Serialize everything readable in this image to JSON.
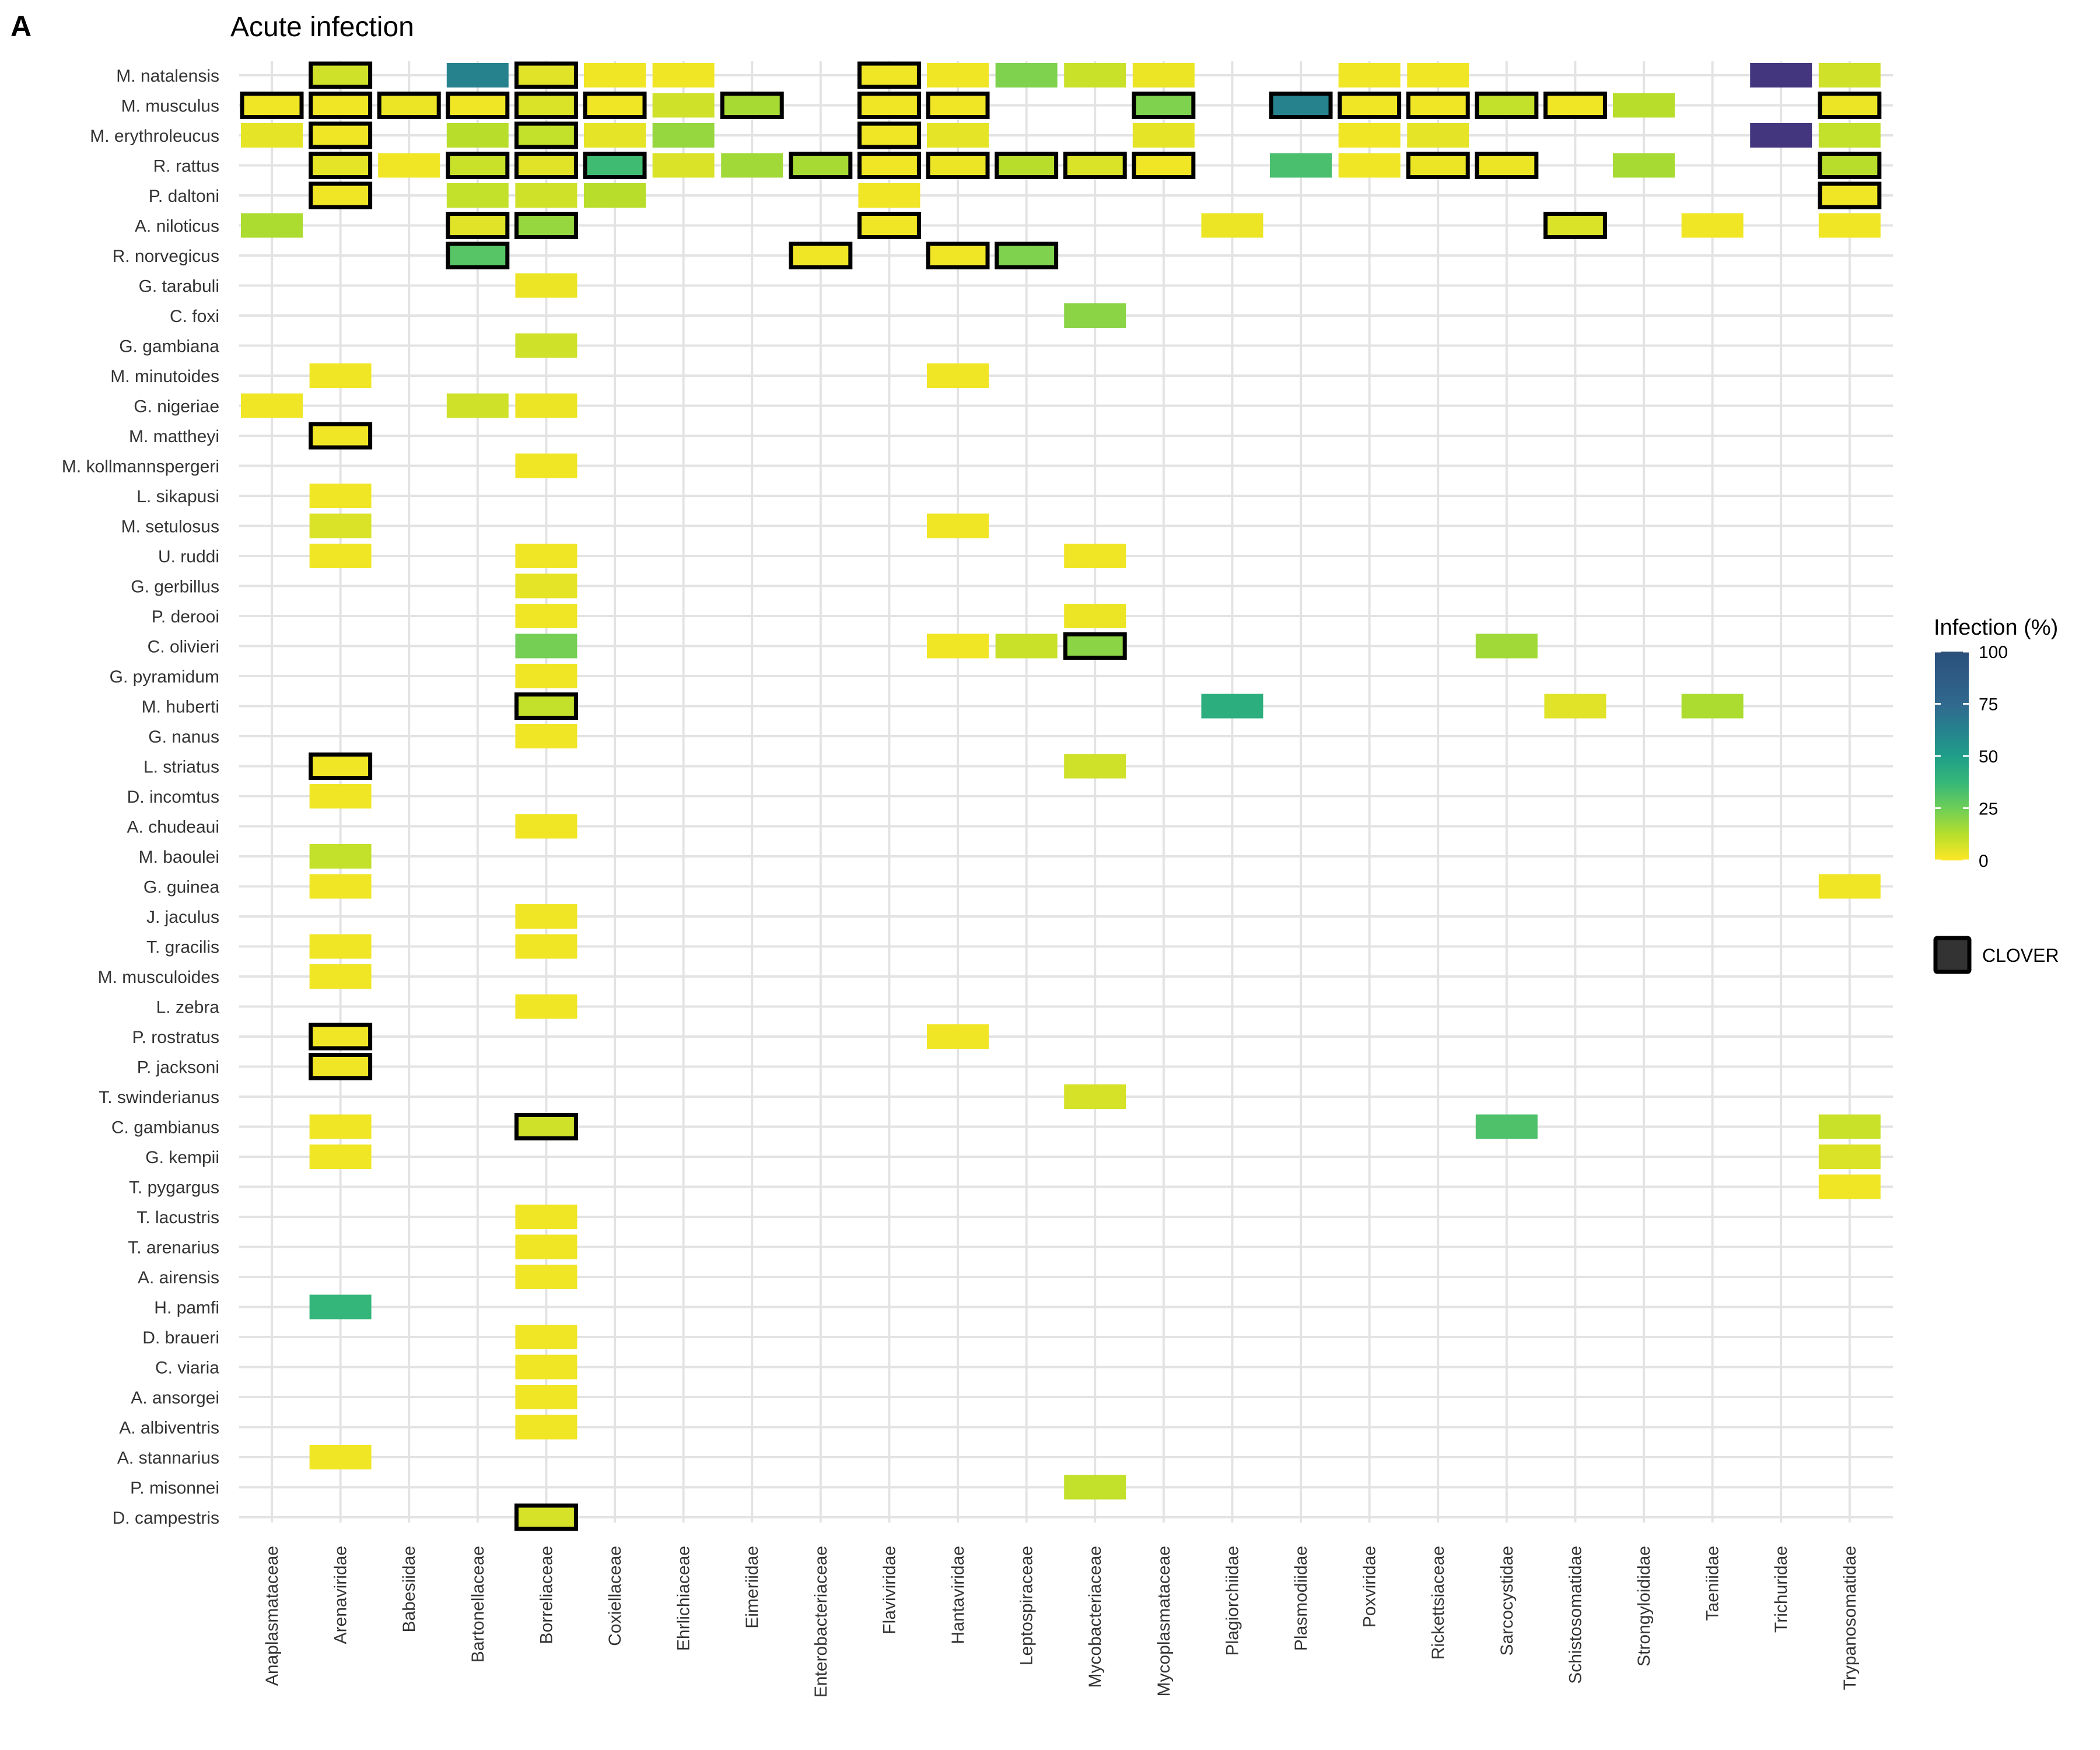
{
  "panel_label": "A",
  "chart_data": {
    "type": "heatmap",
    "title": "Acute infection",
    "xlabel": "",
    "ylabel": "",
    "grid": true,
    "legend_position": "right",
    "color_scale": {
      "title": "Infection (%)",
      "min": 0,
      "max": 100,
      "ticks": [
        0,
        25,
        50,
        75,
        100
      ],
      "palette": [
        "#fde725",
        "#b5de2b",
        "#6ece58",
        "#35b779",
        "#1f9e89",
        "#26828e",
        "#31688e",
        "#3e4989",
        "#482878"
      ]
    },
    "outline_legend": {
      "label": "CLOVER"
    },
    "x_categories": [
      "Anaplasmataceae",
      "Arenaviridae",
      "Babesiidae",
      "Bartonellaceae",
      "Borreliaceae",
      "Coxiellaceae",
      "Ehrlichiaceae",
      "Eimeriidae",
      "Enterobacteriaceae",
      "Flaviviridae",
      "Hantaviridae",
      "Leptospiraceae",
      "Mycobacteriaceae",
      "Mycoplasmataceae",
      "Plagiorchiidae",
      "Plasmodiidae",
      "Poxviridae",
      "Rickettsiaceae",
      "Sarcocystidae",
      "Schistosomatidae",
      "Strongyloididae",
      "Taeniidae",
      "Trichuridae",
      "Trypanosomatidae"
    ],
    "y_categories": [
      "M. natalensis",
      "M. musculus",
      "M. erythroleucus",
      "R. rattus",
      "P. daltoni",
      "A. niloticus",
      "R. norvegicus",
      "G. tarabuli",
      "C. foxi",
      "G. gambiana",
      "M. minutoides",
      "G. nigeriae",
      "M. mattheyi",
      "M. kollmannspergeri",
      "L. sikapusi",
      "M. setulosus",
      "U. ruddi",
      "G. gerbillus",
      "P. derooi",
      "C. olivieri",
      "G. pyramidum",
      "M. huberti",
      "G. nanus",
      "L. striatus",
      "D. incomtus",
      "A. chudeaui",
      "M. baoulei",
      "G. guinea",
      "J. jaculus",
      "T. gracilis",
      "M. musculoides",
      "L. zebra",
      "P. rostratus",
      "P. jacksoni",
      "T. swinderianus",
      "C. gambianus",
      "G. kempii",
      "T. pygargus",
      "T. lacustris",
      "T. arenarius",
      "A. airensis",
      "H. pamfi",
      "D. braueri",
      "C. viaria",
      "A. ansorgei",
      "A. albiventris",
      "A. stannarius",
      "P. misonnei",
      "D. campestris"
    ],
    "cells": [
      {
        "y": "M. natalensis",
        "x": "Arenaviridae",
        "value": 8,
        "clover": true
      },
      {
        "y": "M. natalensis",
        "x": "Bartonellaceae",
        "value": 62,
        "clover": false
      },
      {
        "y": "M. natalensis",
        "x": "Borreliaceae",
        "value": 5,
        "clover": true
      },
      {
        "y": "M. natalensis",
        "x": "Coxiellaceae",
        "value": 2,
        "clover": false
      },
      {
        "y": "M. natalensis",
        "x": "Ehrlichiaceae",
        "value": 2,
        "clover": false
      },
      {
        "y": "M. natalensis",
        "x": "Flaviviridae",
        "value": 2,
        "clover": true
      },
      {
        "y": "M. natalensis",
        "x": "Hantaviridae",
        "value": 2,
        "clover": false
      },
      {
        "y": "M. natalensis",
        "x": "Leptospiraceae",
        "value": 22,
        "clover": false
      },
      {
        "y": "M. natalensis",
        "x": "Mycobacteriaceae",
        "value": 9,
        "clover": false
      },
      {
        "y": "M. natalensis",
        "x": "Mycoplasmataceae",
        "value": 3,
        "clover": false
      },
      {
        "y": "M. natalensis",
        "x": "Poxviridae",
        "value": 2,
        "clover": false
      },
      {
        "y": "M. natalensis",
        "x": "Rickettsiaceae",
        "value": 2,
        "clover": false
      },
      {
        "y": "M. natalensis",
        "x": "Trichuridae",
        "value": 95,
        "clover": false
      },
      {
        "y": "M. natalensis",
        "x": "Trypanosomatidae",
        "value": 8,
        "clover": false
      },
      {
        "y": "M. musculus",
        "x": "Anaplasmataceae",
        "value": 2,
        "clover": true
      },
      {
        "y": "M. musculus",
        "x": "Arenaviridae",
        "value": 2,
        "clover": true
      },
      {
        "y": "M. musculus",
        "x": "Babesiidae",
        "value": 3,
        "clover": true
      },
      {
        "y": "M. musculus",
        "x": "Bartonellaceae",
        "value": 2,
        "clover": true
      },
      {
        "y": "M. musculus",
        "x": "Borreliaceae",
        "value": 6,
        "clover": true
      },
      {
        "y": "M. musculus",
        "x": "Coxiellaceae",
        "value": 2,
        "clover": true
      },
      {
        "y": "M. musculus",
        "x": "Ehrlichiaceae",
        "value": 8,
        "clover": false
      },
      {
        "y": "M. musculus",
        "x": "Eimeriidae",
        "value": 15,
        "clover": true
      },
      {
        "y": "M. musculus",
        "x": "Flaviviridae",
        "value": 2,
        "clover": true
      },
      {
        "y": "M. musculus",
        "x": "Hantaviridae",
        "value": 2,
        "clover": true
      },
      {
        "y": "M. musculus",
        "x": "Mycoplasmataceae",
        "value": 22,
        "clover": true
      },
      {
        "y": "M. musculus",
        "x": "Plasmodiidae",
        "value": 62,
        "clover": true
      },
      {
        "y": "M. musculus",
        "x": "Poxviridae",
        "value": 2,
        "clover": true
      },
      {
        "y": "M. musculus",
        "x": "Rickettsiaceae",
        "value": 2,
        "clover": true
      },
      {
        "y": "M. musculus",
        "x": "Sarcocystidae",
        "value": 10,
        "clover": true
      },
      {
        "y": "M. musculus",
        "x": "Schistosomatidae",
        "value": 2,
        "clover": true
      },
      {
        "y": "M. musculus",
        "x": "Strongyloididae",
        "value": 12,
        "clover": false
      },
      {
        "y": "M. musculus",
        "x": "Trypanosomatidae",
        "value": 3,
        "clover": true
      },
      {
        "y": "M. erythroleucus",
        "x": "Anaplasmataceae",
        "value": 4,
        "clover": false
      },
      {
        "y": "M. erythroleucus",
        "x": "Arenaviridae",
        "value": 2,
        "clover": true
      },
      {
        "y": "M. erythroleucus",
        "x": "Bartonellaceae",
        "value": 12,
        "clover": false
      },
      {
        "y": "M. erythroleucus",
        "x": "Borreliaceae",
        "value": 10,
        "clover": true
      },
      {
        "y": "M. erythroleucus",
        "x": "Coxiellaceae",
        "value": 4,
        "clover": false
      },
      {
        "y": "M. erythroleucus",
        "x": "Ehrlichiaceae",
        "value": 18,
        "clover": false
      },
      {
        "y": "M. erythroleucus",
        "x": "Flaviviridae",
        "value": 2,
        "clover": true
      },
      {
        "y": "M. erythroleucus",
        "x": "Hantaviridae",
        "value": 4,
        "clover": false
      },
      {
        "y": "M. erythroleucus",
        "x": "Mycoplasmataceae",
        "value": 4,
        "clover": false
      },
      {
        "y": "M. erythroleucus",
        "x": "Poxviridae",
        "value": 2,
        "clover": false
      },
      {
        "y": "M. erythroleucus",
        "x": "Rickettsiaceae",
        "value": 4,
        "clover": false
      },
      {
        "y": "M. erythroleucus",
        "x": "Trichuridae",
        "value": 95,
        "clover": false
      },
      {
        "y": "M. erythroleucus",
        "x": "Trypanosomatidae",
        "value": 10,
        "clover": false
      },
      {
        "y": "R. rattus",
        "x": "Arenaviridae",
        "value": 4,
        "clover": true
      },
      {
        "y": "R. rattus",
        "x": "Babesiidae",
        "value": 2,
        "clover": false
      },
      {
        "y": "R. rattus",
        "x": "Bartonellaceae",
        "value": 9,
        "clover": true
      },
      {
        "y": "R. rattus",
        "x": "Borreliaceae",
        "value": 5,
        "clover": true
      },
      {
        "y": "R. rattus",
        "x": "Coxiellaceae",
        "value": 35,
        "clover": true
      },
      {
        "y": "R. rattus",
        "x": "Ehrlichiaceae",
        "value": 6,
        "clover": false
      },
      {
        "y": "R. rattus",
        "x": "Eimeriidae",
        "value": 16,
        "clover": false
      },
      {
        "y": "R. rattus",
        "x": "Enterobacteriaceae",
        "value": 15,
        "clover": true
      },
      {
        "y": "R. rattus",
        "x": "Flaviviridae",
        "value": 2,
        "clover": true
      },
      {
        "y": "R. rattus",
        "x": "Hantaviridae",
        "value": 3,
        "clover": true
      },
      {
        "y": "R. rattus",
        "x": "Leptospiraceae",
        "value": 12,
        "clover": true
      },
      {
        "y": "R. rattus",
        "x": "Mycobacteriaceae",
        "value": 6,
        "clover": true
      },
      {
        "y": "R. rattus",
        "x": "Mycoplasmataceae",
        "value": 2,
        "clover": true
      },
      {
        "y": "R. rattus",
        "x": "Plasmodiidae",
        "value": 33,
        "clover": false
      },
      {
        "y": "R. rattus",
        "x": "Poxviridae",
        "value": 2,
        "clover": false
      },
      {
        "y": "R. rattus",
        "x": "Rickettsiaceae",
        "value": 3,
        "clover": true
      },
      {
        "y": "R. rattus",
        "x": "Sarcocystidae",
        "value": 3,
        "clover": true
      },
      {
        "y": "R. rattus",
        "x": "Strongyloididae",
        "value": 15,
        "clover": false
      },
      {
        "y": "R. rattus",
        "x": "Trypanosomatidae",
        "value": 12,
        "clover": true
      },
      {
        "y": "P. daltoni",
        "x": "Arenaviridae",
        "value": 2,
        "clover": true
      },
      {
        "y": "P. daltoni",
        "x": "Bartonellaceae",
        "value": 10,
        "clover": false
      },
      {
        "y": "P. daltoni",
        "x": "Borreliaceae",
        "value": 8,
        "clover": false
      },
      {
        "y": "P. daltoni",
        "x": "Coxiellaceae",
        "value": 12,
        "clover": false
      },
      {
        "y": "P. daltoni",
        "x": "Flaviviridae",
        "value": 2,
        "clover": false
      },
      {
        "y": "P. daltoni",
        "x": "Trypanosomatidae",
        "value": 2,
        "clover": true
      },
      {
        "y": "A. niloticus",
        "x": "Anaplasmataceae",
        "value": 14,
        "clover": false
      },
      {
        "y": "A. niloticus",
        "x": "Bartonellaceae",
        "value": 5,
        "clover": true
      },
      {
        "y": "A. niloticus",
        "x": "Borreliaceae",
        "value": 18,
        "clover": true
      },
      {
        "y": "A. niloticus",
        "x": "Flaviviridae",
        "value": 2,
        "clover": true
      },
      {
        "y": "A. niloticus",
        "x": "Plagiorchiidae",
        "value": 3,
        "clover": false
      },
      {
        "y": "A. niloticus",
        "x": "Schistosomatidae",
        "value": 6,
        "clover": true
      },
      {
        "y": "A. niloticus",
        "x": "Taeniidae",
        "value": 2,
        "clover": false
      },
      {
        "y": "A. niloticus",
        "x": "Trypanosomatidae",
        "value": 2,
        "clover": false
      },
      {
        "y": "R. norvegicus",
        "x": "Bartonellaceae",
        "value": 30,
        "clover": true
      },
      {
        "y": "R. norvegicus",
        "x": "Enterobacteriaceae",
        "value": 2,
        "clover": true
      },
      {
        "y": "R. norvegicus",
        "x": "Hantaviridae",
        "value": 2,
        "clover": true
      },
      {
        "y": "R. norvegicus",
        "x": "Leptospiraceae",
        "value": 22,
        "clover": true
      },
      {
        "y": "G. tarabuli",
        "x": "Borreliaceae",
        "value": 3,
        "clover": false
      },
      {
        "y": "C. foxi",
        "x": "Mycobacteriaceae",
        "value": 20,
        "clover": false
      },
      {
        "y": "G. gambiana",
        "x": "Borreliaceae",
        "value": 8,
        "clover": false
      },
      {
        "y": "M. minutoides",
        "x": "Arenaviridae",
        "value": 2,
        "clover": false
      },
      {
        "y": "M. minutoides",
        "x": "Hantaviridae",
        "value": 2,
        "clover": false
      },
      {
        "y": "G. nigeriae",
        "x": "Anaplasmataceae",
        "value": 2,
        "clover": false
      },
      {
        "y": "G. nigeriae",
        "x": "Bartonellaceae",
        "value": 8,
        "clover": false
      },
      {
        "y": "G. nigeriae",
        "x": "Borreliaceae",
        "value": 3,
        "clover": false
      },
      {
        "y": "M. mattheyi",
        "x": "Arenaviridae",
        "value": 2,
        "clover": true
      },
      {
        "y": "M. kollmannspergeri",
        "x": "Borreliaceae",
        "value": 2,
        "clover": false
      },
      {
        "y": "L. sikapusi",
        "x": "Arenaviridae",
        "value": 2,
        "clover": false
      },
      {
        "y": "M. setulosus",
        "x": "Arenaviridae",
        "value": 6,
        "clover": false
      },
      {
        "y": "M. setulosus",
        "x": "Hantaviridae",
        "value": 2,
        "clover": false
      },
      {
        "y": "U. ruddi",
        "x": "Arenaviridae",
        "value": 2,
        "clover": false
      },
      {
        "y": "U. ruddi",
        "x": "Borreliaceae",
        "value": 2,
        "clover": false
      },
      {
        "y": "U. ruddi",
        "x": "Mycobacteriaceae",
        "value": 2,
        "clover": false
      },
      {
        "y": "G. gerbillus",
        "x": "Borreliaceae",
        "value": 4,
        "clover": false
      },
      {
        "y": "P. derooi",
        "x": "Borreliaceae",
        "value": 2,
        "clover": false
      },
      {
        "y": "P. derooi",
        "x": "Mycobacteriaceae",
        "value": 3,
        "clover": false
      },
      {
        "y": "C. olivieri",
        "x": "Borreliaceae",
        "value": 24,
        "clover": false
      },
      {
        "y": "C. olivieri",
        "x": "Hantaviridae",
        "value": 2,
        "clover": false
      },
      {
        "y": "C. olivieri",
        "x": "Leptospiraceae",
        "value": 9,
        "clover": false
      },
      {
        "y": "C. olivieri",
        "x": "Mycobacteriaceae",
        "value": 20,
        "clover": true
      },
      {
        "y": "C. olivieri",
        "x": "Sarcocystidae",
        "value": 16,
        "clover": false
      },
      {
        "y": "G. pyramidum",
        "x": "Borreliaceae",
        "value": 2,
        "clover": false
      },
      {
        "y": "M. huberti",
        "x": "Borreliaceae",
        "value": 10,
        "clover": true
      },
      {
        "y": "M. huberti",
        "x": "Plagiorchiidae",
        "value": 42,
        "clover": false
      },
      {
        "y": "M. huberti",
        "x": "Schistosomatidae",
        "value": 5,
        "clover": false
      },
      {
        "y": "M. huberti",
        "x": "Taeniidae",
        "value": 14,
        "clover": false
      },
      {
        "y": "G. nanus",
        "x": "Borreliaceae",
        "value": 2,
        "clover": false
      },
      {
        "y": "L. striatus",
        "x": "Arenaviridae",
        "value": 2,
        "clover": true
      },
      {
        "y": "L. striatus",
        "x": "Mycobacteriaceae",
        "value": 8,
        "clover": false
      },
      {
        "y": "D. incomtus",
        "x": "Arenaviridae",
        "value": 2,
        "clover": false
      },
      {
        "y": "A. chudeaui",
        "x": "Borreliaceae",
        "value": 2,
        "clover": false
      },
      {
        "y": "M. baoulei",
        "x": "Arenaviridae",
        "value": 10,
        "clover": false
      },
      {
        "y": "G. guinea",
        "x": "Arenaviridae",
        "value": 2,
        "clover": false
      },
      {
        "y": "G. guinea",
        "x": "Trypanosomatidae",
        "value": 2,
        "clover": false
      },
      {
        "y": "J. jaculus",
        "x": "Borreliaceae",
        "value": 2,
        "clover": false
      },
      {
        "y": "T. gracilis",
        "x": "Arenaviridae",
        "value": 2,
        "clover": false
      },
      {
        "y": "T. gracilis",
        "x": "Borreliaceae",
        "value": 2,
        "clover": false
      },
      {
        "y": "M. musculoides",
        "x": "Arenaviridae",
        "value": 2,
        "clover": false
      },
      {
        "y": "L. zebra",
        "x": "Borreliaceae",
        "value": 2,
        "clover": false
      },
      {
        "y": "P. rostratus",
        "x": "Arenaviridae",
        "value": 2,
        "clover": true
      },
      {
        "y": "P. rostratus",
        "x": "Hantaviridae",
        "value": 2,
        "clover": false
      },
      {
        "y": "P. jacksoni",
        "x": "Arenaviridae",
        "value": 2,
        "clover": true
      },
      {
        "y": "T. swinderianus",
        "x": "Mycobacteriaceae",
        "value": 7,
        "clover": false
      },
      {
        "y": "C. gambianus",
        "x": "Arenaviridae",
        "value": 2,
        "clover": false
      },
      {
        "y": "C. gambianus",
        "x": "Borreliaceae",
        "value": 8,
        "clover": true
      },
      {
        "y": "C. gambianus",
        "x": "Sarcocystidae",
        "value": 32,
        "clover": false
      },
      {
        "y": "C. gambianus",
        "x": "Trypanosomatidae",
        "value": 9,
        "clover": false
      },
      {
        "y": "G. kempii",
        "x": "Arenaviridae",
        "value": 2,
        "clover": false
      },
      {
        "y": "G. kempii",
        "x": "Trypanosomatidae",
        "value": 6,
        "clover": false
      },
      {
        "y": "T. pygargus",
        "x": "Trypanosomatidae",
        "value": 2,
        "clover": false
      },
      {
        "y": "T. lacustris",
        "x": "Borreliaceae",
        "value": 2,
        "clover": false
      },
      {
        "y": "T. arenarius",
        "x": "Borreliaceae",
        "value": 2,
        "clover": false
      },
      {
        "y": "A. airensis",
        "x": "Borreliaceae",
        "value": 2,
        "clover": false
      },
      {
        "y": "H. pamfi",
        "x": "Arenaviridae",
        "value": 38,
        "clover": false
      },
      {
        "y": "D. braueri",
        "x": "Borreliaceae",
        "value": 2,
        "clover": false
      },
      {
        "y": "C. viaria",
        "x": "Borreliaceae",
        "value": 2,
        "clover": false
      },
      {
        "y": "A. ansorgei",
        "x": "Borreliaceae",
        "value": 2,
        "clover": false
      },
      {
        "y": "A. albiventris",
        "x": "Borreliaceae",
        "value": 2,
        "clover": false
      },
      {
        "y": "A. stannarius",
        "x": "Arenaviridae",
        "value": 2,
        "clover": false
      },
      {
        "y": "P. misonnei",
        "x": "Mycobacteriaceae",
        "value": 10,
        "clover": false
      },
      {
        "y": "D. campestris",
        "x": "Borreliaceae",
        "value": 7,
        "clover": true
      }
    ]
  }
}
